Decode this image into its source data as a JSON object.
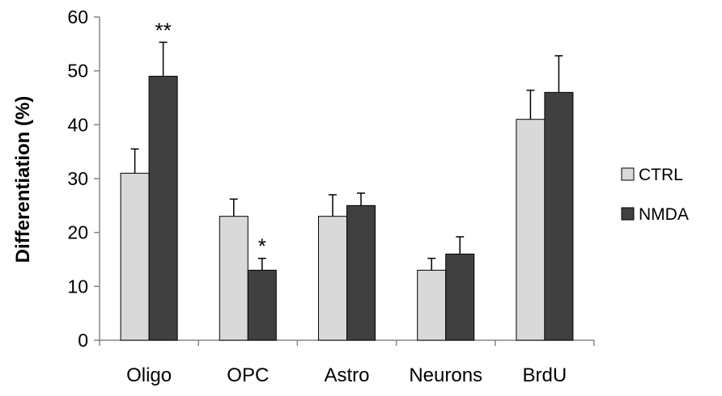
{
  "chart_data": {
    "type": "bar",
    "title": "",
    "xlabel": "",
    "ylabel": "Differentiation (%)",
    "ylim": [
      0,
      60
    ],
    "yticks": [
      0,
      10,
      20,
      30,
      40,
      50,
      60
    ],
    "categories": [
      "Oligo",
      "OPC",
      "Astro",
      "Neurons",
      "BrdU"
    ],
    "series": [
      {
        "name": "CTRL",
        "color": "#d9d9d9",
        "values": [
          31,
          23,
          23,
          13,
          41
        ],
        "errors": [
          4.5,
          3.2,
          4.0,
          2.2,
          5.4
        ]
      },
      {
        "name": "NMDA",
        "color": "#404040",
        "values": [
          49,
          13,
          25,
          16,
          46
        ],
        "errors": [
          6.3,
          2.2,
          2.3,
          3.2,
          6.8
        ]
      }
    ],
    "annotations": [
      {
        "category": "Oligo",
        "series": "NMDA",
        "text": "**"
      },
      {
        "category": "OPC",
        "series": "NMDA",
        "text": "*"
      }
    ],
    "grid": false,
    "legend_position": "right"
  }
}
